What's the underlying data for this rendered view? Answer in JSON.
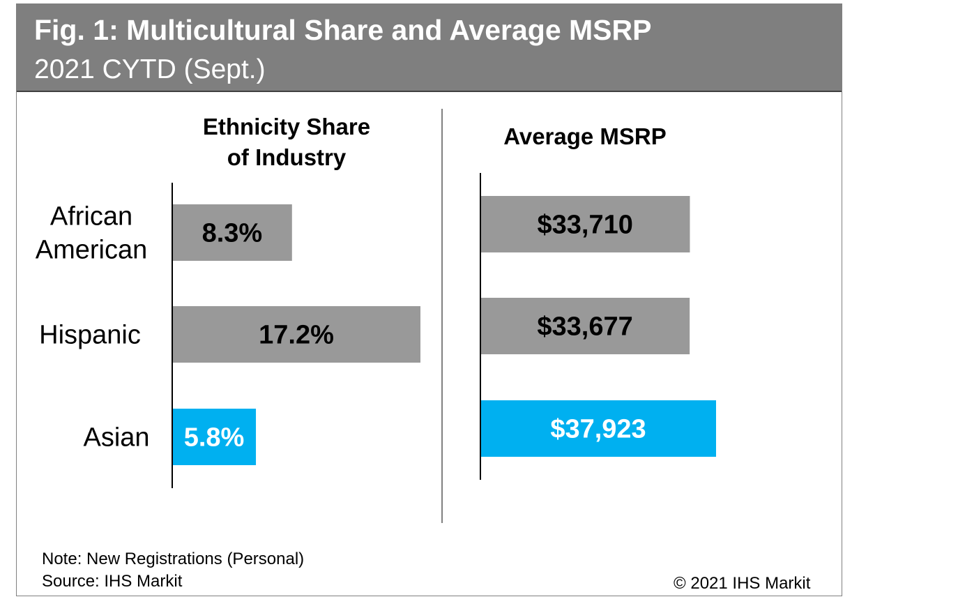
{
  "header": {
    "title": "Fig. 1: Multicultural Share and Average MSRP",
    "subtitle": "2021 CYTD (Sept.)"
  },
  "chart_data": [
    {
      "type": "bar",
      "orientation": "horizontal",
      "title_lines": [
        "Ethnicity Share",
        "of Industry"
      ],
      "categories": [
        [
          "African",
          "American"
        ],
        [
          "Hispanic"
        ],
        [
          "Asian"
        ]
      ],
      "values": [
        8.3,
        17.2,
        5.8
      ],
      "value_labels": [
        "8.3%",
        "17.2%",
        "5.8%"
      ],
      "bar_colors": [
        "#999999",
        "#999999",
        "#00b0f0"
      ],
      "label_colors": [
        "#000000",
        "#000000",
        "#ffffff"
      ],
      "xlim": [
        0,
        17.5
      ]
    },
    {
      "type": "bar",
      "orientation": "horizontal",
      "title_lines": [
        "Average MSRP"
      ],
      "categories": [
        [
          "African",
          "American"
        ],
        [
          "Hispanic"
        ],
        [
          "Asian"
        ]
      ],
      "values": [
        33710,
        33677,
        37923
      ],
      "value_labels": [
        "$33,710",
        "$33,677",
        "$37,923"
      ],
      "bar_colors": [
        "#999999",
        "#999999",
        "#00b0f0"
      ],
      "label_colors": [
        "#000000",
        "#000000",
        "#ffffff"
      ],
      "xlim": [
        0,
        42000
      ]
    }
  ],
  "footer": {
    "note": "Note: New Registrations (Personal)",
    "source": "Source: IHS Markit",
    "copyright": "© 2021 IHS Markit"
  }
}
